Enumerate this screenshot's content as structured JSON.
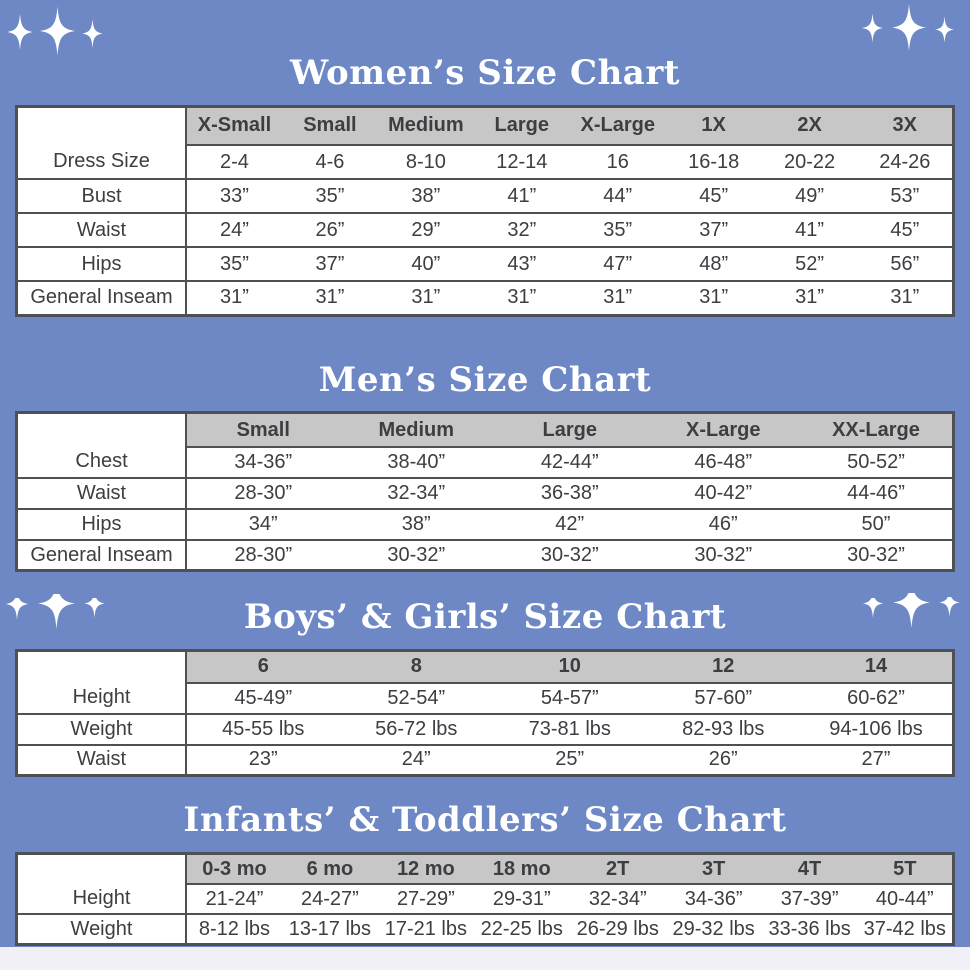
{
  "page": {
    "background_color": "#6d88c5",
    "footer_strip_color": "#f1f0f7",
    "table_border_color": "#4f5054",
    "header_fill_color": "#c7c7c7",
    "text_color": "#3d3e42",
    "title_color": "#ffffff"
  },
  "decorations": {
    "top_left": "three white four-point sparkle stars",
    "top_right": "three white four-point sparkle stars",
    "mid_left": "three white bottom-half sparkle stars",
    "mid_right": "three white bottom-half sparkle stars"
  },
  "sections": [
    {
      "title": "Women’s Size Chart",
      "columns": [
        "X-Small",
        "Small",
        "Medium",
        "Large",
        "X-Large",
        "1X",
        "2X",
        "3X"
      ],
      "rows": [
        {
          "label": "Dress Size",
          "values": [
            "2-4",
            "4-6",
            "8-10",
            "12-14",
            "16",
            "16-18",
            "20-22",
            "24-26"
          ]
        },
        {
          "label": "Bust",
          "values": [
            "33”",
            "35”",
            "38”",
            "41”",
            "44”",
            "45”",
            "49”",
            "53”"
          ]
        },
        {
          "label": "Waist",
          "values": [
            "24”",
            "26”",
            "29”",
            "32”",
            "35”",
            "37”",
            "41”",
            "45”"
          ]
        },
        {
          "label": "Hips",
          "values": [
            "35”",
            "37”",
            "40”",
            "43”",
            "47”",
            "48”",
            "52”",
            "56”"
          ]
        },
        {
          "label": "General Inseam",
          "values": [
            "31”",
            "31”",
            "31”",
            "31”",
            "31”",
            "31”",
            "31”",
            "31”"
          ]
        }
      ]
    },
    {
      "title": "Men’s Size Chart",
      "columns": [
        "Small",
        "Medium",
        "Large",
        "X-Large",
        "XX-Large"
      ],
      "rows": [
        {
          "label": "Chest",
          "values": [
            "34-36”",
            "38-40”",
            "42-44”",
            "46-48”",
            "50-52”"
          ]
        },
        {
          "label": "Waist",
          "values": [
            "28-30”",
            "32-34”",
            "36-38”",
            "40-42”",
            "44-46”"
          ]
        },
        {
          "label": "Hips",
          "values": [
            "34”",
            "38”",
            "42”",
            "46”",
            "50”"
          ]
        },
        {
          "label": "General Inseam",
          "values": [
            "28-30”",
            "30-32”",
            "30-32”",
            "30-32”",
            "30-32”"
          ]
        }
      ]
    },
    {
      "title": "Boys’ & Girls’ Size Chart",
      "columns": [
        "6",
        "8",
        "10",
        "12",
        "14"
      ],
      "rows": [
        {
          "label": "Height",
          "values": [
            "45-49”",
            "52-54”",
            "54-57”",
            "57-60”",
            "60-62”"
          ]
        },
        {
          "label": "Weight",
          "values": [
            "45-55 lbs",
            "56-72 lbs",
            "73-81 lbs",
            "82-93 lbs",
            "94-106 lbs"
          ]
        },
        {
          "label": "Waist",
          "values": [
            "23”",
            "24”",
            "25”",
            "26”",
            "27”"
          ]
        }
      ]
    },
    {
      "title": "Infants’ & Toddlers’ Size Chart",
      "columns": [
        "0-3 mo",
        "6 mo",
        "12 mo",
        "18 mo",
        "2T",
        "3T",
        "4T",
        "5T"
      ],
      "rows": [
        {
          "label": "Height",
          "values": [
            "21-24”",
            "24-27”",
            "27-29”",
            "29-31”",
            "32-34”",
            "34-36”",
            "37-39”",
            "40-44”"
          ]
        },
        {
          "label": "Weight",
          "values": [
            "8-12 lbs",
            "13-17 lbs",
            "17-21 lbs",
            "22-25 lbs",
            "26-29 lbs",
            "29-32 lbs",
            "33-36 lbs",
            "37-42 lbs"
          ]
        }
      ]
    }
  ]
}
